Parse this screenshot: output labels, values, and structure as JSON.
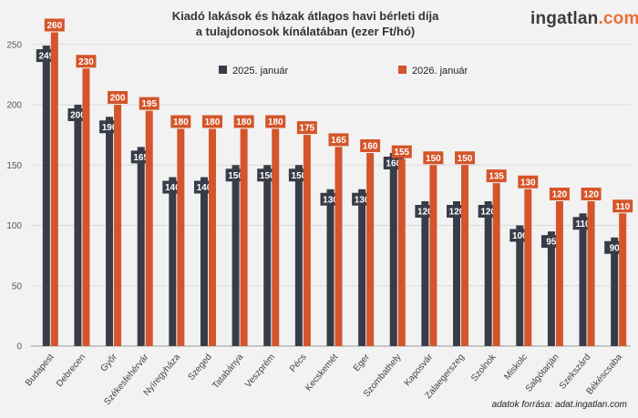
{
  "header": {
    "title_line1": "Kiadó lakások és házak átlagos havi bérleti díja",
    "title_line2": "a tulajdonosok kínálatában (ezer Ft/hó)",
    "logo_main": "ingatlan",
    "logo_tld": ".com"
  },
  "footer": {
    "source": "adatok forrása: adat.ingatlan.com"
  },
  "colors": {
    "series_2025": "#373c48",
    "series_2026": "#d4552a",
    "grid": "#d9d9d9",
    "background": "#f2f2f2"
  },
  "chart_data": {
    "type": "bar",
    "title": "Kiadó lakások és házak átlagos havi bérleti díja a tulajdonosok kínálatában (ezer Ft/hó)",
    "xlabel": "",
    "ylabel": "",
    "ylim": [
      0,
      265
    ],
    "yticks": [
      0,
      50,
      100,
      150,
      200,
      250
    ],
    "grid": true,
    "legend_position": "top-center",
    "categories": [
      "Budapest",
      "Debrecen",
      "Győr",
      "Székesfehérvár",
      "Nyíregyháza",
      "Szeged",
      "Tatabánya",
      "Veszprém",
      "Pécs",
      "Kecskemét",
      "Eger",
      "Szombathely",
      "Kaposvár",
      "Zalaegerszeg",
      "Szolnok",
      "Miskolc",
      "Salgótarján",
      "Szekszárd",
      "Békéscsaba"
    ],
    "series": [
      {
        "name": "2025. január",
        "values": [
          249,
          200,
          190,
          165,
          140,
          140,
          150,
          150,
          150,
          130,
          130,
          160,
          120,
          120,
          120,
          100,
          95,
          110,
          90
        ]
      },
      {
        "name": "2026. január",
        "values": [
          260,
          230,
          200,
          195,
          180,
          180,
          180,
          180,
          175,
          165,
          160,
          155,
          150,
          150,
          135,
          130,
          120,
          120,
          110
        ]
      }
    ]
  }
}
